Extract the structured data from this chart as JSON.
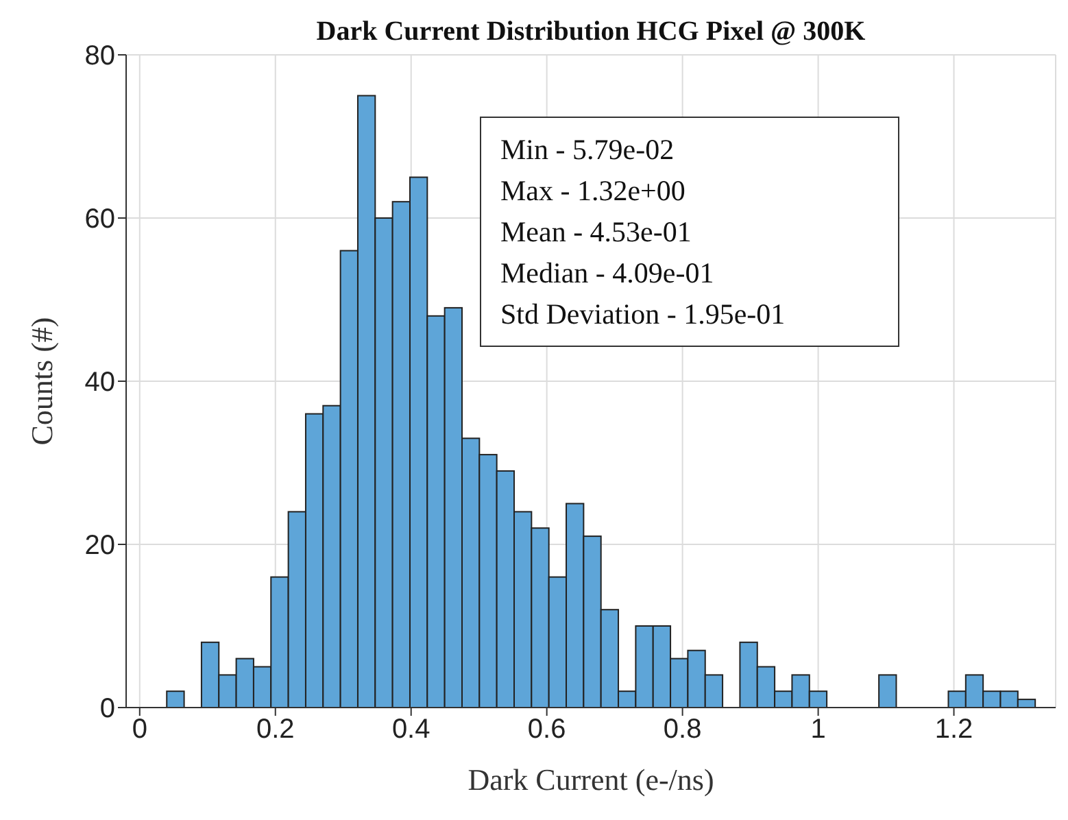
{
  "chart_data": {
    "type": "histogram",
    "title": "Dark Current Distribution HCG Pixel @ 300K",
    "xlabel": "Dark Current (e-/ns)",
    "ylabel": "Counts (#)",
    "bins": [
      0.04,
      0.0656,
      0.0912,
      0.1168,
      0.1424,
      0.168,
      0.1936,
      0.2192,
      0.2448,
      0.2704,
      0.296,
      0.3216,
      0.3472,
      0.3728,
      0.3984,
      0.424,
      0.4496,
      0.4752,
      0.5008,
      0.5264,
      0.552,
      0.5776,
      0.6032,
      0.6288,
      0.6544,
      0.68,
      0.7056,
      0.7312,
      0.7568,
      0.7824,
      0.808,
      0.8336,
      0.8592,
      0.8848,
      0.9104,
      0.936,
      0.9616,
      0.9872,
      1.0128,
      1.0384,
      1.064,
      1.0896,
      1.1152,
      1.1408,
      1.1664,
      1.192,
      1.2176,
      1.2432,
      1.2688,
      1.2944,
      1.32
    ],
    "values": [
      2,
      0,
      8,
      4,
      6,
      5,
      16,
      24,
      36,
      37,
      56,
      75,
      60,
      62,
      65,
      48,
      49,
      33,
      31,
      29,
      24,
      22,
      16,
      25,
      21,
      12,
      2,
      10,
      10,
      6,
      7,
      4,
      0,
      8,
      5,
      2,
      4,
      2,
      0,
      0,
      0,
      4,
      0,
      0,
      0,
      2,
      4,
      2,
      2,
      1
    ],
    "color": "#5ea5d8",
    "xlim": [
      -0.02,
      1.35
    ],
    "xticks": [
      0,
      0.2,
      0.4,
      0.6,
      0.8,
      1,
      1.2
    ],
    "ylim": [
      0,
      80
    ],
    "yticks": [
      0,
      20,
      40,
      60,
      80
    ],
    "grid": true,
    "annotations": [
      "Min - 5.79e-02",
      "Max - 1.32e+00",
      "Mean - 4.53e-01",
      "Median - 4.09e-01",
      "Std Deviation - 1.95e-01"
    ]
  }
}
